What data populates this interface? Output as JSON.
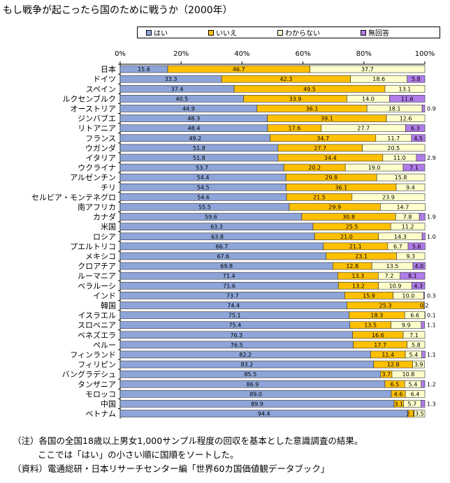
{
  "title": "もし戦争が起こったら国のために戦うか（2000年）",
  "colors": {
    "yes": "#8ea5d9",
    "no": "#ffc000",
    "dk": "#ffffcc",
    "na": "#b07bea"
  },
  "legend": [
    {
      "key": "yes",
      "label": "はい"
    },
    {
      "key": "no",
      "label": "いいえ"
    },
    {
      "key": "dk",
      "label": "わからない"
    },
    {
      "key": "na",
      "label": "無回答"
    }
  ],
  "notes": [
    "（注）各国の全国18歳以上男女1,000サンプル程度の回収を基本とした意識調査の結果。",
    "ここでは「はい」の小さい順に国順をソートした。",
    "（資料）電通総研・日本リサーチセンター編「世界60カ国価値観データブック」"
  ],
  "chart_data": {
    "type": "bar",
    "orientation": "horizontal",
    "stacked": true,
    "xlim": [
      0,
      100
    ],
    "tick_labels": [
      "0%",
      "20%",
      "40%",
      "60%",
      "80%",
      "100%"
    ],
    "categories": [
      "日本",
      "ドイツ",
      "スペイン",
      "ルクセンブルク",
      "オーストリア",
      "ジンバブエ",
      "リトアニア",
      "フランス",
      "ウガンダ",
      "イタリア",
      "ウクライナ",
      "アルゼンチン",
      "チリ",
      "セルビア・モンテネグロ",
      "南アフリカ",
      "カナダ",
      "米国",
      "ロシア",
      "プエルトリコ",
      "メキシコ",
      "クロアチア",
      "ルーマニア",
      "ベラルーシ",
      "インド",
      "韓国",
      "イスラエル",
      "スロベニア",
      "ベネズエラ",
      "ペルー",
      "フィンランド",
      "フィリピン",
      "バングラデシュ",
      "タンザニア",
      "モロッコ",
      "中国",
      "ベトナム"
    ],
    "series": [
      {
        "name": "はい",
        "key": "yes",
        "values": [
          15.6,
          33.3,
          37.4,
          40.5,
          44.9,
          48.3,
          48.4,
          49.2,
          51.8,
          51.8,
          53.7,
          54.4,
          54.5,
          54.6,
          55.5,
          59.6,
          63.3,
          63.8,
          66.7,
          67.6,
          69.8,
          71.4,
          71.6,
          73.7,
          74.4,
          75.1,
          75.4,
          76.3,
          76.5,
          82.2,
          83.2,
          85.5,
          86.9,
          89.0,
          89.9,
          94.4
        ]
      },
      {
        "name": "いいえ",
        "key": "no",
        "values": [
          46.7,
          42.3,
          49.5,
          33.9,
          36.1,
          39.1,
          17.6,
          34.7,
          27.7,
          34.4,
          20.2,
          29.8,
          36.1,
          21.5,
          29.9,
          30.8,
          25.5,
          21.0,
          21.1,
          23.1,
          12.8,
          13.3,
          13.2,
          15.9,
          25.3,
          18.3,
          13.5,
          16.6,
          17.7,
          11.4,
          12.8,
          3.7,
          6.5,
          4.6,
          3.1,
          2.1
        ]
      },
      {
        "name": "わからない",
        "key": "dk",
        "values": [
          37.7,
          18.6,
          13.1,
          14.0,
          18.1,
          12.6,
          27.7,
          11.7,
          20.5,
          11.0,
          19.0,
          15.8,
          9.4,
          23.9,
          14.7,
          7.8,
          11.2,
          14.3,
          6.7,
          9.3,
          13.5,
          7.2,
          10.9,
          10.0,
          0.2,
          6.6,
          9.9,
          7.1,
          5.8,
          5.4,
          3.9,
          10.8,
          5.4,
          6.4,
          5.7,
          3.5
        ]
      },
      {
        "name": "無回答",
        "key": "na",
        "values": [
          0,
          5.8,
          0,
          11.6,
          0.9,
          0,
          6.3,
          4.5,
          0,
          2.9,
          7.1,
          0,
          0,
          0,
          0,
          1.9,
          0,
          1.0,
          5.6,
          0,
          4.0,
          8.1,
          4.3,
          0.3,
          0,
          0.1,
          1.1,
          0,
          0,
          1.1,
          0,
          0,
          1.2,
          0,
          1.3,
          0
        ]
      }
    ],
    "labels": [
      [
        "15.6",
        "46.7",
        "37.7",
        ""
      ],
      [
        "33.3",
        "42.3",
        "18.6",
        "5.8"
      ],
      [
        "37.4",
        "49.5",
        "13.1",
        ""
      ],
      [
        "40.5",
        "33.9",
        "14.0",
        "11.6"
      ],
      [
        "44.9",
        "36.1",
        "18.1",
        "0.9"
      ],
      [
        "48.3",
        "39.1",
        "12.6",
        ""
      ],
      [
        "48.4",
        "17.6",
        "27.7",
        "6.3"
      ],
      [
        "49.2",
        "34.7",
        "11.7",
        "4.5"
      ],
      [
        "51.8",
        "27.7",
        "20.5",
        ""
      ],
      [
        "51.8",
        "34.4",
        "11.0",
        "2.9"
      ],
      [
        "53.7",
        "20.2",
        "19.0",
        "7.1"
      ],
      [
        "54.4",
        "29.8",
        "15.8",
        ""
      ],
      [
        "54.5",
        "36.1",
        "9.4",
        ""
      ],
      [
        "54.6",
        "21.5",
        "23.9",
        ""
      ],
      [
        "55.5",
        "29.9",
        "14.7",
        ""
      ],
      [
        "59.6",
        "30.8",
        "7.8",
        "1.9"
      ],
      [
        "63.3",
        "25.5",
        "11.2",
        ""
      ],
      [
        "63.8",
        "21.0",
        "14.3",
        "1.0"
      ],
      [
        "66.7",
        "21.1",
        "6.7",
        "5.6"
      ],
      [
        "67.6",
        "23.1",
        "9.3",
        ""
      ],
      [
        "69.8",
        "12.8",
        "13.5",
        "4.0"
      ],
      [
        "71.4",
        "13.3",
        "7.2",
        "8.1"
      ],
      [
        "71.6",
        "13.2",
        "10.9",
        "4.3"
      ],
      [
        "73.7",
        "15.9",
        "10.0",
        "0.3"
      ],
      [
        "74.4",
        "25.3",
        "0.2",
        ""
      ],
      [
        "75.1",
        "18.3",
        "6.6",
        "0.1"
      ],
      [
        "75.4",
        "13.5",
        "9.9",
        "1.1"
      ],
      [
        "76.3",
        "16.6",
        "7.1",
        ""
      ],
      [
        "76.5",
        "17.7",
        "5.8",
        ""
      ],
      [
        "82.2",
        "11.4",
        "5.4",
        "1.1"
      ],
      [
        "83.2",
        "12.8",
        "3.9",
        ""
      ],
      [
        "85.5",
        "3.7",
        "10.8",
        ""
      ],
      [
        "86.9",
        "6.5",
        "5.4",
        "1.2"
      ],
      [
        "89.0",
        "4.6",
        "6.4",
        ""
      ],
      [
        "89.9",
        "3.1",
        "5.7",
        "1.3"
      ],
      [
        "94.4",
        "2.1",
        "3.5",
        ""
      ]
    ]
  }
}
